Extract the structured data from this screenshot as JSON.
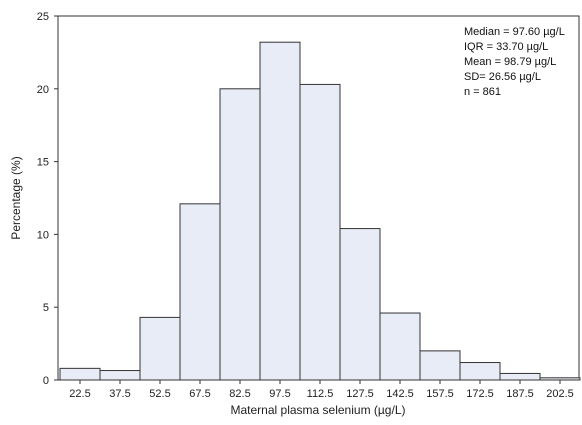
{
  "chart_data": {
    "type": "bar",
    "subtype": "histogram",
    "categories": [
      "22.5",
      "37.5",
      "52.5",
      "67.5",
      "82.5",
      "97.5",
      "112.5",
      "127.5",
      "142.5",
      "157.5",
      "172.5",
      "187.5",
      "202.5"
    ],
    "values": [
      0.8,
      0.65,
      4.3,
      12.1,
      20.0,
      23.2,
      20.3,
      10.4,
      4.6,
      2.0,
      1.2,
      0.45,
      0.15
    ],
    "title": "",
    "xlabel": "Maternal plasma selenium (µg/L)",
    "ylabel": "Percentage (%)",
    "ylim": [
      0,
      25
    ],
    "yticks": [
      "0",
      "5",
      "10",
      "15",
      "20",
      "25"
    ],
    "grid": false,
    "legend": "none",
    "annotation": {
      "lines": [
        "Median = 97.60 µg/L",
        "IQR = 33.70 µg/L",
        "Mean  = 98.79 µg/L",
        "SD= 26.56 µg/L",
        "n = 861"
      ],
      "position": "top-right"
    },
    "colors": {
      "bar_fill": "#e8ecf6",
      "bar_stroke": "#333333",
      "axis": "#333333"
    }
  }
}
